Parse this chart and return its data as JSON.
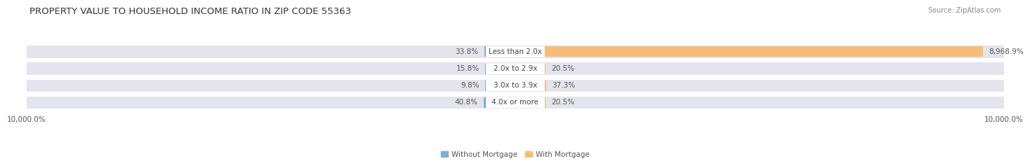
{
  "title": "PROPERTY VALUE TO HOUSEHOLD INCOME RATIO IN ZIP CODE 55363",
  "source": "Source: ZipAtlas.com",
  "categories": [
    "Less than 2.0x",
    "2.0x to 2.9x",
    "3.0x to 3.9x",
    "4.0x or more"
  ],
  "without_mortgage": [
    33.8,
    15.8,
    9.8,
    40.8
  ],
  "with_mortgage": [
    8968.9,
    20.5,
    37.3,
    20.5
  ],
  "without_mortgage_labels": [
    "33.8%",
    "15.8%",
    "9.8%",
    "40.8%"
  ],
  "with_mortgage_labels": [
    "8,968.9%",
    "20.5%",
    "37.3%",
    "20.5%"
  ],
  "bar_color_without": "#7AAFD4",
  "bar_color_with": "#F5BE78",
  "bg_color_bar": "#E4E4EC",
  "bg_color_fig": "#FFFFFF",
  "xlim": [
    -10000,
    10000
  ],
  "xtick_labels": [
    "10,000.0%",
    "10,000.0%"
  ],
  "xtick_positions": [
    -10000,
    10000
  ],
  "title_fontsize": 9.5,
  "source_fontsize": 7,
  "label_fontsize": 7.5,
  "category_fontsize": 7.5,
  "legend_fontsize": 7.5,
  "axis_fontsize": 7.5
}
